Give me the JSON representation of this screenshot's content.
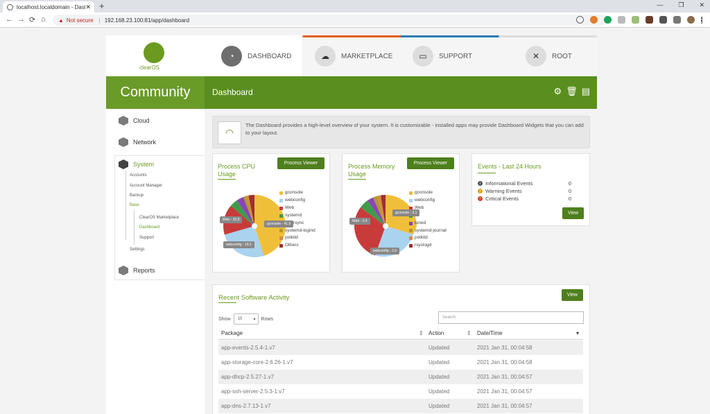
{
  "browser": {
    "tab_title": "localhost.localdomain - Dashboa",
    "tab_close": "✕",
    "new_tab": "+",
    "not_secure": "Not secure",
    "url": "192.168.23.100:81/app/dashboard"
  },
  "brand": {
    "logo_text": "clearOS",
    "edition": "Community"
  },
  "topnav": {
    "items": [
      {
        "label": "DASHBOARD",
        "active": true
      },
      {
        "label": "MARKETPLACE"
      },
      {
        "label": "SUPPORT"
      },
      {
        "label": "ROOT"
      }
    ]
  },
  "header": {
    "page_title": "Dashboard"
  },
  "sidebar": {
    "cloud": "Cloud",
    "network": "Network",
    "system": "System",
    "system_items": [
      "Accounts",
      "Account Manager",
      "Backup",
      "Base",
      "ClearOS Marketplace",
      "Dashboard",
      "Support",
      "Settings"
    ],
    "reports": "Reports"
  },
  "info": {
    "text": "The Dashboard provides a high-level overview of your system. It is customizable - installed apps may provide Dashboard Widgets that you can add to your layout."
  },
  "cpu": {
    "title_line1": "Process CPU",
    "title_line2": "Usage",
    "button": "Process Viewer",
    "legend": [
      "gconsole",
      "webconfig",
      "Web",
      "systemd",
      "clearsync",
      "systemd-logind",
      "polkitd",
      "Others"
    ],
    "labels": [
      "Web - 10.8",
      "gconsole - 41.9",
      "webconfig - 19.2"
    ]
  },
  "mem": {
    "title_line1": "Process Memory",
    "title_line2": "Usage",
    "button": "Process Viewer",
    "legend": [
      "gconsole",
      "webconfig",
      "Web",
      "X",
      "tuned",
      "systemd-journal",
      "polkitd",
      "rsyslogd"
    ],
    "labels": [
      "Web - 2.4",
      "gconsole - 2.1",
      "webconfig - 2.9"
    ]
  },
  "events": {
    "title": "Events - Last 24 Hours",
    "rows": [
      {
        "label": "Informational Events",
        "count": "0"
      },
      {
        "label": "Warning Events",
        "count": "0"
      },
      {
        "label": "Critical Events",
        "count": "0"
      }
    ],
    "button": "View"
  },
  "software": {
    "title": "Recent Software Activity",
    "button": "View",
    "show_label": "Show",
    "show_value": "10",
    "rows_label": "Rows",
    "search_placeholder": "Search",
    "columns": [
      "Package",
      "Action",
      "Date/Time"
    ],
    "rows": [
      [
        "app-events-2.5.4-1.v7",
        "Updated",
        "2021 Jan 31, 00:04:58"
      ],
      [
        "app-storage-core-2.6.26-1.v7",
        "Updated",
        "2021 Jan 31, 00:04:58"
      ],
      [
        "app-dhcp-2.5.27-1.v7",
        "Updated",
        "2021 Jan 31, 00:04:57"
      ],
      [
        "app-ssh-server-2.5.3-1.v7",
        "Updated",
        "2021 Jan 31, 00:04:57"
      ],
      [
        "app-dns-2.7.13-1.v7",
        "Updated",
        "2021 Jan 31, 00:04:57"
      ]
    ]
  },
  "colors": {
    "accent": "#5a8f1f",
    "pie": [
      "#f0bf3a",
      "#a9d3ef",
      "#c83b3b",
      "#3f9b4b",
      "#8a45b6",
      "#b8962d",
      "#d28f3a",
      "#9f2f2f"
    ]
  }
}
